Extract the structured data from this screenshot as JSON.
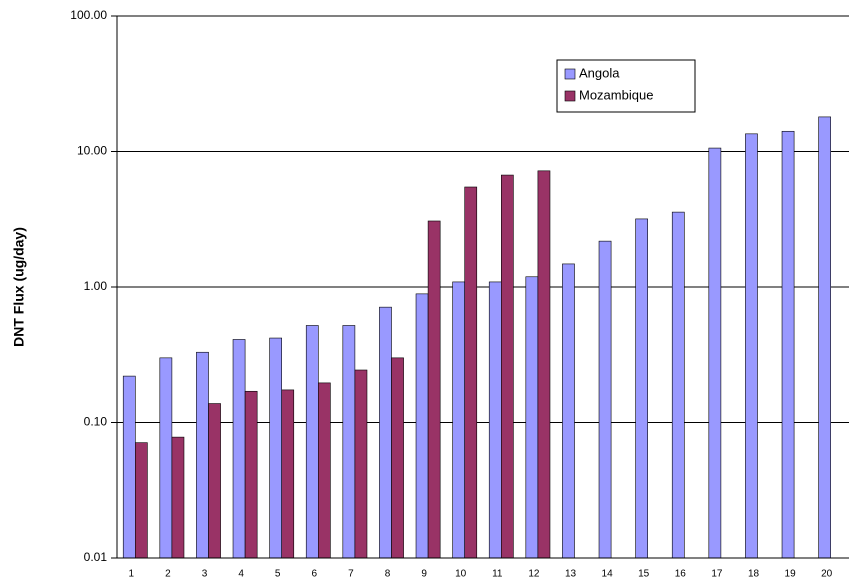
{
  "chart_data": {
    "type": "bar",
    "log_scale": true,
    "grid": true,
    "ylabel": "DNT Flux (ug/day)",
    "categories": [
      "1",
      "2",
      "3",
      "4",
      "5",
      "6",
      "7",
      "8",
      "9",
      "10",
      "11",
      "12",
      "13",
      "14",
      "15",
      "16",
      "17",
      "18",
      "19",
      "20"
    ],
    "series": [
      {
        "name": "Angola",
        "color": "#9999ff",
        "values": [
          0.22,
          0.3,
          0.33,
          0.41,
          0.42,
          0.52,
          0.52,
          0.71,
          0.89,
          1.09,
          1.09,
          1.19,
          1.48,
          2.18,
          3.18,
          3.57,
          10.6,
          13.5,
          14.1,
          18.0
        ]
      },
      {
        "name": "Mozambique",
        "color": "#993366",
        "values": [
          0.071,
          0.078,
          0.138,
          0.17,
          0.174,
          0.196,
          0.244,
          0.3,
          3.07,
          5.47,
          6.7,
          7.2,
          null,
          null,
          null,
          null,
          null,
          null,
          null,
          null
        ]
      }
    ],
    "ylim": [
      0.01,
      100
    ],
    "yticks": [
      {
        "value": 0.01,
        "label": "0.01"
      },
      {
        "value": 0.1,
        "label": "0.10"
      },
      {
        "value": 1,
        "label": "1.00"
      },
      {
        "value": 10,
        "label": "10.00"
      },
      {
        "value": 100,
        "label": "100.00"
      }
    ]
  }
}
